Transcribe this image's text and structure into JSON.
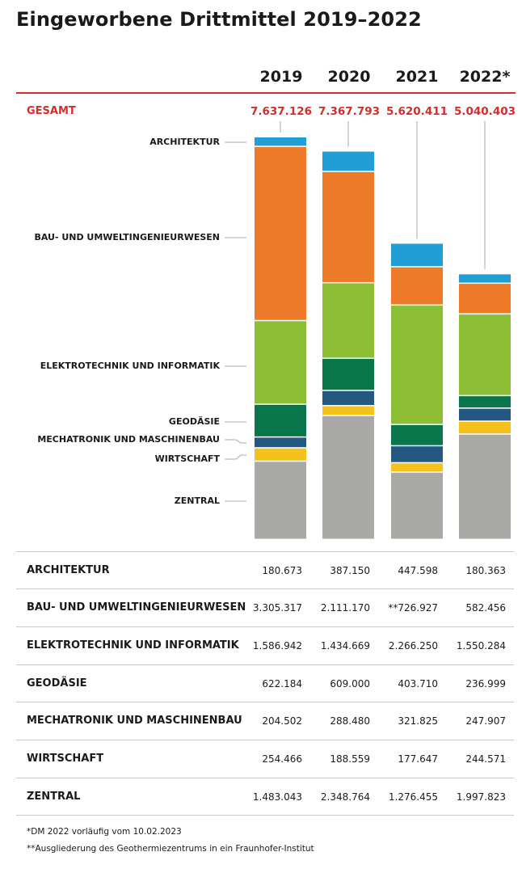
{
  "title": "Eingeworbene Drittmittel 2019–2022",
  "years": [
    "2019",
    "2020",
    "2021",
    "2022*"
  ],
  "gesamt_label": "GESAMT",
  "totals": [
    "7.637.126",
    "7.367.793",
    "5.620.411",
    "5.040.403"
  ],
  "colors": {
    "accent_red": "#d42e2a",
    "architektur": "#1f9fd6",
    "bau": "#ee7b2a",
    "elektrotechnik": "#8cbf35",
    "geodaesie": "#08764a",
    "mechatronik": "#245880",
    "wirtschaft": "#f7c11c",
    "zentral": "#a9a9a5"
  },
  "chart_data": {
    "type": "bar",
    "stacked": true,
    "categories": [
      "2019",
      "2020",
      "2021",
      "2022*"
    ],
    "series": [
      {
        "name": "ARCHITEKTUR",
        "values": [
          180673,
          387150,
          447598,
          180363
        ]
      },
      {
        "name": "BAU- UND UMWELTINGENIEURWESEN",
        "values": [
          3305317,
          2111170,
          726927,
          582456
        ]
      },
      {
        "name": "ELEKTROTECHNIK UND INFORMATIK",
        "values": [
          1586942,
          1434669,
          2266250,
          1550284
        ]
      },
      {
        "name": "GEODÄSIE",
        "values": [
          622184,
          609000,
          403710,
          236999
        ]
      },
      {
        "name": "MECHATRONIK UND MASCHINENBAU",
        "values": [
          204502,
          288480,
          321825,
          247907
        ]
      },
      {
        "name": "WIRTSCHAFT",
        "values": [
          254466,
          188559,
          177647,
          244571
        ]
      },
      {
        "name": "ZENTRAL",
        "values": [
          1483043,
          2348764,
          1276455,
          1997823
        ]
      }
    ],
    "totals": [
      7637126,
      7367793,
      5620411,
      5040403
    ],
    "legend_placement": "left"
  },
  "table": {
    "rows": [
      {
        "label": "ARCHITEKTUR",
        "values": [
          "180.673",
          "387.150",
          "447.598",
          "180.363"
        ]
      },
      {
        "label": "BAU- UND UMWELTINGENIEURWESEN",
        "values": [
          "3.305.317",
          "2.111.170",
          "**726.927",
          "582.456"
        ]
      },
      {
        "label": "ELEKTROTECHNIK UND INFORMATIK",
        "values": [
          "1.586.942",
          "1.434.669",
          "2.266.250",
          "1.550.284"
        ]
      },
      {
        "label": "GEODÄSIE",
        "values": [
          "622.184",
          "609.000",
          "403.710",
          "236.999"
        ]
      },
      {
        "label": "MECHATRONIK UND MASCHINENBAU",
        "values": [
          "204.502",
          "288.480",
          "321.825",
          "247.907"
        ]
      },
      {
        "label": "WIRTSCHAFT",
        "values": [
          "254.466",
          "188.559",
          "177.647",
          "244.571"
        ]
      },
      {
        "label": "ZENTRAL",
        "values": [
          "1.483.043",
          "2.348.764",
          "1.276.455",
          "1.997.823"
        ]
      }
    ]
  },
  "footnotes": [
    "*DM 2022 vorläufig vom 10.02.2023",
    "**Ausgliederung des Geothermiezentrums in ein Fraunhofer-Institut"
  ]
}
